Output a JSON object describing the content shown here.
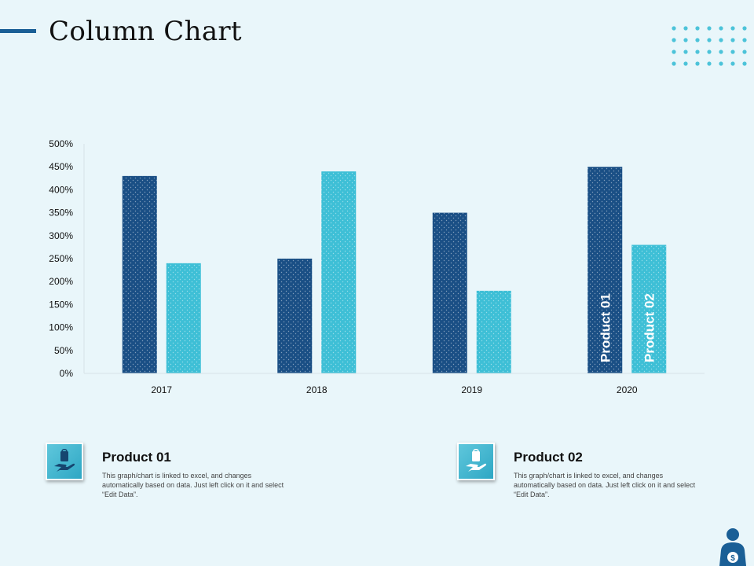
{
  "page": {
    "title": "Column Chart",
    "colors": {
      "background": "#e9f6fa",
      "accent": "#1a5f96",
      "dots": "#4cc3d9"
    }
  },
  "chart_data": {
    "type": "bar",
    "categories": [
      "2017",
      "2018",
      "2019",
      "2020"
    ],
    "series": [
      {
        "name": "Product 01",
        "color": "#1a4f85",
        "values": [
          430,
          250,
          350,
          450
        ]
      },
      {
        "name": "Product 02",
        "color": "#3ebfd6",
        "values": [
          240,
          440,
          180,
          280
        ]
      }
    ],
    "ylim": [
      0,
      500
    ],
    "yticks": [
      0,
      50,
      100,
      150,
      200,
      250,
      300,
      350,
      400,
      450,
      500
    ],
    "ytick_labels": [
      "0%",
      "50%",
      "100%",
      "150%",
      "200%",
      "250%",
      "300%",
      "350%",
      "400%",
      "450%",
      "500%"
    ],
    "xlabel": "",
    "ylabel": "",
    "grid": false,
    "series_labels_inside_last_group": true
  },
  "legend": [
    {
      "title": "Product  01",
      "icon": "hand-holding-bag-icon",
      "description": "This graph/chart is linked to excel, and changes automatically based on data. Just left click on it and select “Edit Data”."
    },
    {
      "title": "Product  02",
      "icon": "hand-holding-bag-icon",
      "description": "This graph/chart is linked to excel, and changes automatically based on data. Just left click on it and select “Edit Data”."
    }
  ],
  "decor": {
    "corner_icon": "person-money-icon",
    "dots_icon": "dot-grid-decoration"
  }
}
